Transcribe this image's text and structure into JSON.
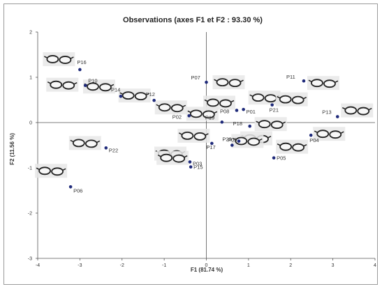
{
  "chart_data": {
    "type": "scatter",
    "title": "Observations (axes F1 et F2 : 93.30 %)",
    "xlabel": "F1 (81.74 %)",
    "ylabel": "F2 (11.56 %)",
    "xlim": [
      -4,
      4
    ],
    "ylim": [
      -3,
      2
    ],
    "xticks": [
      "-4",
      "-3",
      "-2",
      "-1",
      "0",
      "1",
      "2",
      "3",
      "4"
    ],
    "yticks": [
      "2",
      "1",
      "0",
      "-1",
      "-2",
      "-3"
    ],
    "grid": false,
    "point_color": "#1f2a7a",
    "points": [
      {
        "label": "P01",
        "x": 0.88,
        "y": 0.29
      },
      {
        "label": "P02",
        "x": -0.41,
        "y": 0.15
      },
      {
        "label": "P03",
        "x": -0.39,
        "y": -0.87
      },
      {
        "label": "P04",
        "x": 2.48,
        "y": -0.28
      },
      {
        "label": "P05",
        "x": 1.6,
        "y": -0.78
      },
      {
        "label": "P06",
        "x": -3.22,
        "y": -1.42
      },
      {
        "label": "P07",
        "x": 0.0,
        "y": 0.89
      },
      {
        "label": "P08",
        "x": 0.72,
        "y": 0.27
      },
      {
        "label": "P09",
        "x": 0.77,
        "y": -0.41
      },
      {
        "label": "P10",
        "x": -2.87,
        "y": 0.82
      },
      {
        "label": "P11",
        "x": 2.31,
        "y": 0.92
      },
      {
        "label": "P12",
        "x": -1.24,
        "y": 0.49
      },
      {
        "label": "P13",
        "x": 3.11,
        "y": 0.13
      },
      {
        "label": "P14",
        "x": -2.03,
        "y": 0.58
      },
      {
        "label": "P15",
        "x": -0.37,
        "y": -0.98
      },
      {
        "label": "P16",
        "x": -3.0,
        "y": 1.17
      },
      {
        "label": "P17",
        "x": 0.13,
        "y": -0.46
      },
      {
        "label": "P18",
        "x": 1.03,
        "y": -0.08
      },
      {
        "label": "P19",
        "x": 0.37,
        "y": 0.01
      },
      {
        "label": "P20",
        "x": 0.61,
        "y": -0.5
      },
      {
        "label": "P21",
        "x": 1.56,
        "y": 0.39
      },
      {
        "label": "P22",
        "x": -2.38,
        "y": -0.56
      }
    ]
  }
}
